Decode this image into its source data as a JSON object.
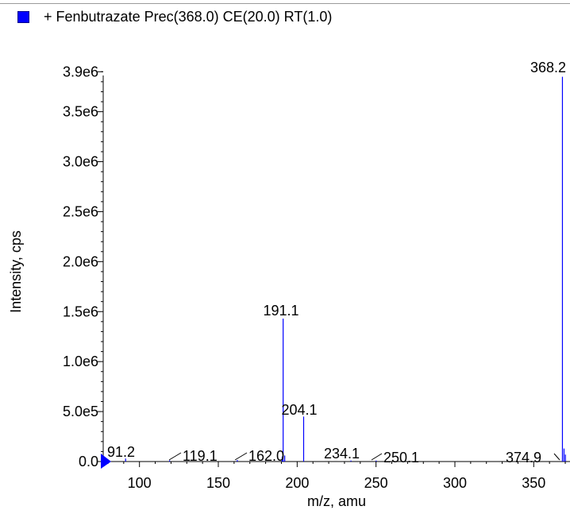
{
  "legend": {
    "label": "+ Fenbutrazate Prec(368.0) CE(20.0) RT(1.0)",
    "color": "#0000ff"
  },
  "colors": {
    "series": "#0000ff",
    "axis": "#000000",
    "leader": "#000000",
    "marker": "#0000ff"
  },
  "chart_data": {
    "type": "bar",
    "xlabel": "m/z, amu",
    "ylabel": "Intensity, cps",
    "xlim": [
      77,
      373
    ],
    "ylim": [
      0,
      3950000.0
    ],
    "grid": false,
    "xticks": [
      {
        "value": 100,
        "label": "100"
      },
      {
        "value": 150,
        "label": "150"
      },
      {
        "value": 200,
        "label": "200"
      },
      {
        "value": 250,
        "label": "250"
      },
      {
        "value": 300,
        "label": "300"
      },
      {
        "value": 350,
        "label": "350"
      }
    ],
    "yticks": [
      {
        "value": 0,
        "label": "0.0"
      },
      {
        "value": 500000,
        "label": "5.0e5"
      },
      {
        "value": 1000000,
        "label": "1.0e6"
      },
      {
        "value": 1500000,
        "label": "1.5e6"
      },
      {
        "value": 2000000,
        "label": "2.0e6"
      },
      {
        "value": 2500000,
        "label": "2.5e6"
      },
      {
        "value": 3000000,
        "label": "3.0e6"
      },
      {
        "value": 3500000,
        "label": "3.5e6"
      },
      {
        "value": 3900000,
        "label": "3.9e6"
      }
    ],
    "peaks": [
      {
        "mz": 91.2,
        "intensity": 30000
      },
      {
        "mz": 119.1,
        "intensity": 12000
      },
      {
        "mz": 162.0,
        "intensity": 15000
      },
      {
        "mz": 190.5,
        "intensity": 50000
      },
      {
        "mz": 191.1,
        "intensity": 1430000
      },
      {
        "mz": 192.1,
        "intensity": 60000
      },
      {
        "mz": 204.1,
        "intensity": 450000
      },
      {
        "mz": 234.1,
        "intensity": 10000
      },
      {
        "mz": 250.1,
        "intensity": 10000
      },
      {
        "mz": 368.2,
        "intensity": 3850000
      },
      {
        "mz": 369.2,
        "intensity": 130000
      },
      {
        "mz": 370.1,
        "intensity": 70000
      },
      {
        "mz": 374.9,
        "intensity": 20000
      }
    ],
    "annotations": [
      {
        "mz": 91.2,
        "label": "91.2",
        "intensity": 30000
      },
      {
        "mz": 119.1,
        "label": "119.1",
        "intensity": 12000
      },
      {
        "mz": 162.0,
        "label": "162.0",
        "intensity": 15000
      },
      {
        "mz": 191.1,
        "label": "191.1",
        "intensity": 1430000
      },
      {
        "mz": 204.1,
        "label": "204.1",
        "intensity": 450000
      },
      {
        "mz": 234.1,
        "label": "234.1",
        "intensity": 10000
      },
      {
        "mz": 250.1,
        "label": "250.1",
        "intensity": 10000
      },
      {
        "mz": 368.2,
        "label": "368.2",
        "intensity": 3850000
      },
      {
        "mz": 374.9,
        "label": "374.9",
        "intensity": 20000
      }
    ]
  }
}
